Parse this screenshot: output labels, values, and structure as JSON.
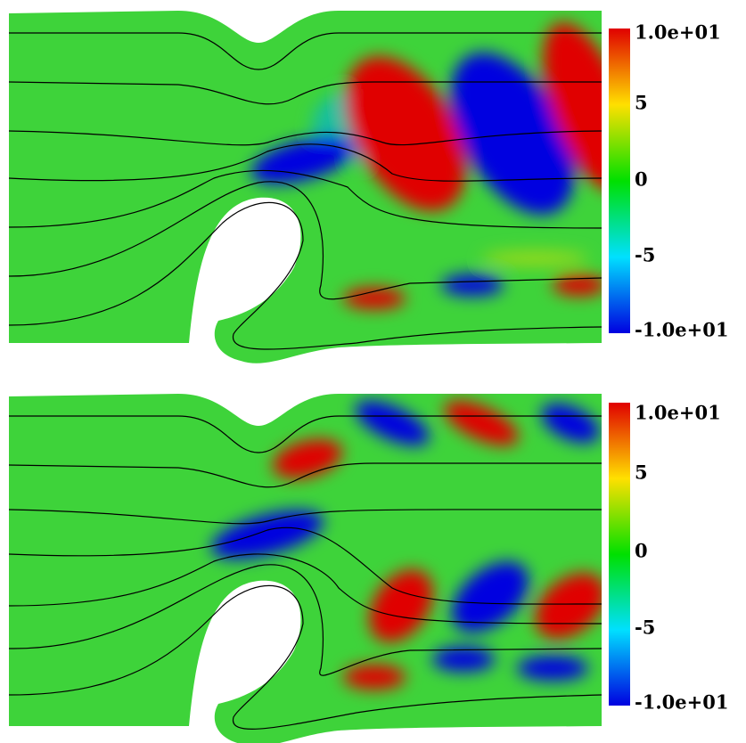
{
  "panels": [
    {
      "colorbar": {
        "labels": [
          "1.0e+01",
          "5",
          "0",
          "-5",
          "-1.0e+01"
        ]
      }
    },
    {
      "colorbar": {
        "labels": [
          "1.0e+01",
          "5",
          "0",
          "-5",
          "-1.0e+01"
        ]
      }
    }
  ]
}
